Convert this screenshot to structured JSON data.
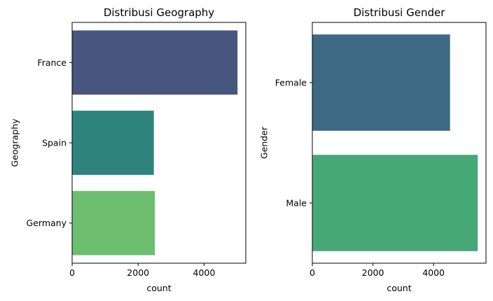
{
  "chart_data": [
    {
      "type": "bar",
      "orientation": "horizontal",
      "title": "Distribusi Geography",
      "xlabel": "count",
      "ylabel": "Geography",
      "categories": [
        "France",
        "Spain",
        "Germany"
      ],
      "values": [
        5014,
        2477,
        2509
      ],
      "colors": [
        "#46567f",
        "#2e847c",
        "#6dbe6e"
      ],
      "xlim": [
        0,
        5265
      ],
      "xticks": [
        0,
        2000,
        4000
      ],
      "grid": false,
      "legend": "none"
    },
    {
      "type": "bar",
      "orientation": "horizontal",
      "title": "Distribusi Gender",
      "xlabel": "count",
      "ylabel": "Gender",
      "categories": [
        "Female",
        "Male"
      ],
      "values": [
        4543,
        5457
      ],
      "colors": [
        "#3d6984",
        "#47a877"
      ],
      "xlim": [
        0,
        5730
      ],
      "xticks": [
        0,
        2000,
        4000
      ],
      "grid": false,
      "legend": "none"
    }
  ]
}
